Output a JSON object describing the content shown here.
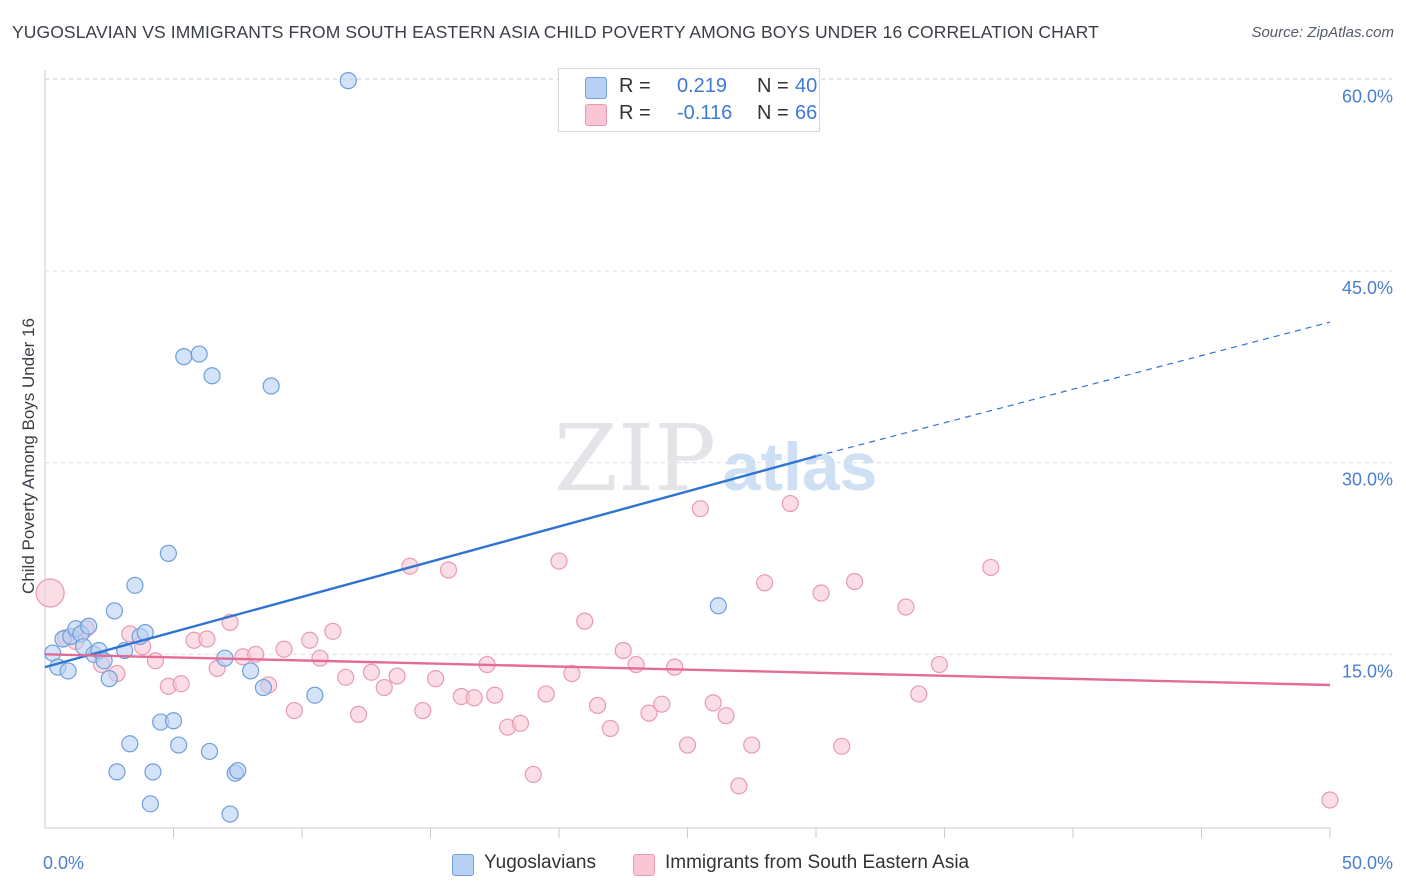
{
  "header": {
    "title": "YUGOSLAVIAN VS IMMIGRANTS FROM SOUTH EASTERN ASIA CHILD POVERTY AMONG BOYS UNDER 16 CORRELATION CHART",
    "source": "Source: ZipAtlas.com"
  },
  "watermark": {
    "zip": "ZIP",
    "atlas": "atlas"
  },
  "legend": {
    "r_label": "R =",
    "n_label": "N =",
    "series": [
      {
        "r": "0.219",
        "n": "40"
      },
      {
        "r": "-0.116",
        "n": "66"
      }
    ]
  },
  "bottom_legend": [
    "Yugoslavians",
    "Immigrants from South Eastern Asia"
  ],
  "colors": {
    "blue_fill": "#b7d0f3",
    "blue_stroke": "#6f9fdc",
    "blue_line": "#2f74d0",
    "pink_fill": "#f8c6d4",
    "pink_stroke": "#e99ab2",
    "pink_line": "#e56b97",
    "grid": "#d9dce1",
    "tick_text": "#4a7fd0"
  },
  "chart_data": {
    "type": "scatter",
    "title": "YUGOSLAVIAN VS IMMIGRANTS FROM SOUTH EASTERN ASIA CHILD POVERTY AMONG BOYS UNDER 16 CORRELATION CHART",
    "xlabel": "",
    "ylabel": "Child Poverty Among Boys Under 16",
    "xlim": [
      0,
      50
    ],
    "ylim": [
      0,
      62
    ],
    "x_tick_labels": [
      "0.0%",
      "50.0%"
    ],
    "y_ticks": [
      15,
      30,
      45,
      60
    ],
    "y_tick_labels": [
      "15.0%",
      "30.0%",
      "45.0%",
      "60.0%"
    ],
    "x_minor_ticks": [
      5,
      10,
      15,
      20,
      25,
      30,
      35,
      40,
      45,
      50
    ],
    "series": [
      {
        "name": "Yugoslavians",
        "color": "blue",
        "r": 0.219,
        "n": 40,
        "trend": {
          "x0": 0,
          "y0": 14.0,
          "x1": 30,
          "y1": 30.5,
          "x_dash_end": 50,
          "y_dash_end": 41.0
        },
        "points": [
          [
            0.3,
            15.1
          ],
          [
            0.5,
            14.0
          ],
          [
            0.7,
            16.2
          ],
          [
            0.9,
            13.7
          ],
          [
            1.0,
            16.4
          ],
          [
            1.2,
            17.0
          ],
          [
            1.4,
            16.6
          ],
          [
            1.5,
            15.6
          ],
          [
            1.7,
            17.2
          ],
          [
            1.9,
            15.0
          ],
          [
            2.1,
            15.3
          ],
          [
            2.3,
            14.5
          ],
          [
            2.5,
            13.1
          ],
          [
            2.7,
            18.4
          ],
          [
            2.8,
            5.8
          ],
          [
            3.1,
            15.3
          ],
          [
            3.3,
            8.0
          ],
          [
            3.5,
            20.4
          ],
          [
            3.7,
            16.4
          ],
          [
            3.9,
            16.7
          ],
          [
            4.1,
            3.3
          ],
          [
            4.2,
            5.8
          ],
          [
            4.5,
            9.7
          ],
          [
            4.8,
            22.9
          ],
          [
            5.0,
            9.8
          ],
          [
            5.2,
            7.9
          ],
          [
            5.4,
            38.3
          ],
          [
            6.0,
            38.5
          ],
          [
            6.4,
            7.4
          ],
          [
            6.5,
            36.8
          ],
          [
            7.0,
            14.7
          ],
          [
            7.2,
            2.5
          ],
          [
            7.4,
            5.7
          ],
          [
            7.5,
            5.9
          ],
          [
            8.0,
            13.7
          ],
          [
            8.5,
            12.4
          ],
          [
            8.8,
            36.0
          ],
          [
            10.5,
            11.8
          ],
          [
            11.8,
            59.9
          ],
          [
            26.2,
            18.8
          ]
        ]
      },
      {
        "name": "Immigrants from South Eastern Asia",
        "color": "pink",
        "r": -0.116,
        "n": 66,
        "trend": {
          "x0": 0,
          "y0": 15.0,
          "x1": 50,
          "y1": 12.6
        },
        "points": [
          [
            0.2,
            19.8
          ],
          [
            0.8,
            16.3
          ],
          [
            1.2,
            16.0
          ],
          [
            1.6,
            17.0
          ],
          [
            2.2,
            14.2
          ],
          [
            2.8,
            13.5
          ],
          [
            3.3,
            16.6
          ],
          [
            3.8,
            15.6
          ],
          [
            4.3,
            14.5
          ],
          [
            4.8,
            12.5
          ],
          [
            5.3,
            12.7
          ],
          [
            5.8,
            16.1
          ],
          [
            6.3,
            16.2
          ],
          [
            6.7,
            13.9
          ],
          [
            7.2,
            17.5
          ],
          [
            7.7,
            14.8
          ],
          [
            8.2,
            15.0
          ],
          [
            8.7,
            12.6
          ],
          [
            9.3,
            15.4
          ],
          [
            9.7,
            10.6
          ],
          [
            10.3,
            16.1
          ],
          [
            10.7,
            14.7
          ],
          [
            11.2,
            16.8
          ],
          [
            11.7,
            13.2
          ],
          [
            12.2,
            10.3
          ],
          [
            12.7,
            13.6
          ],
          [
            13.2,
            12.4
          ],
          [
            13.7,
            13.3
          ],
          [
            14.2,
            21.9
          ],
          [
            14.7,
            10.6
          ],
          [
            15.2,
            13.1
          ],
          [
            15.7,
            21.6
          ],
          [
            16.2,
            11.7
          ],
          [
            16.7,
            11.6
          ],
          [
            17.2,
            14.2
          ],
          [
            17.5,
            11.8
          ],
          [
            18.0,
            9.3
          ],
          [
            18.5,
            9.6
          ],
          [
            19.0,
            5.6
          ],
          [
            19.5,
            11.9
          ],
          [
            20.0,
            22.3
          ],
          [
            20.5,
            13.5
          ],
          [
            21.0,
            17.6
          ],
          [
            21.5,
            11.0
          ],
          [
            22.0,
            9.2
          ],
          [
            22.5,
            15.3
          ],
          [
            23.0,
            14.2
          ],
          [
            23.5,
            10.4
          ],
          [
            24.0,
            11.1
          ],
          [
            24.5,
            14.0
          ],
          [
            25.0,
            7.9
          ],
          [
            25.5,
            26.4
          ],
          [
            26.0,
            11.2
          ],
          [
            26.5,
            10.2
          ],
          [
            27.0,
            4.7
          ],
          [
            27.5,
            7.9
          ],
          [
            28.0,
            20.6
          ],
          [
            29.0,
            26.8
          ],
          [
            30.2,
            19.8
          ],
          [
            31.0,
            7.8
          ],
          [
            31.5,
            20.7
          ],
          [
            33.5,
            18.7
          ],
          [
            34.0,
            11.9
          ],
          [
            34.8,
            14.2
          ],
          [
            36.8,
            21.8
          ],
          [
            50.0,
            3.6
          ]
        ]
      }
    ]
  }
}
